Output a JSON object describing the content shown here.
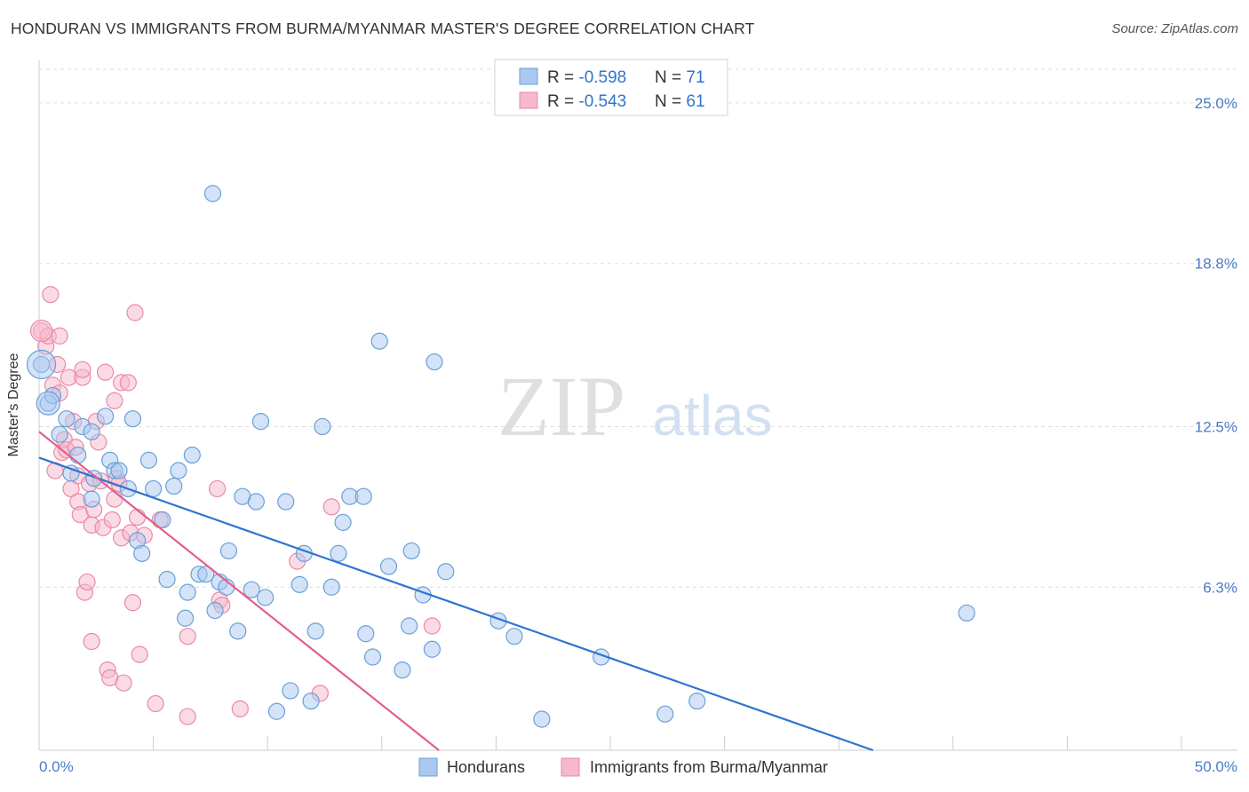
{
  "title": "HONDURAN VS IMMIGRANTS FROM BURMA/MYANMAR MASTER'S DEGREE CORRELATION CHART",
  "source": "Source: ZipAtlas.com",
  "watermark": {
    "zip": "ZIP",
    "atlas": "atlas"
  },
  "colors": {
    "blue_fill": "#aac8f0",
    "blue_stroke": "#6a9fd8",
    "blue_line": "#2f74d0",
    "pink_fill": "#f6b8cc",
    "pink_stroke": "#e88aa8",
    "pink_line": "#e0608c",
    "tick_label": "#4a7cc7",
    "grid": "#dddddd"
  },
  "chart_data": {
    "type": "scatter",
    "title": "HONDURAN VS IMMIGRANTS FROM BURMA/MYANMAR MASTER'S DEGREE CORRELATION CHART",
    "xlabel": "",
    "ylabel": "Master's Degree",
    "xlim": [
      0,
      50
    ],
    "ylim": [
      0,
      26.3
    ],
    "x_tick_labels": [
      {
        "value": 0,
        "label": "0.0%"
      },
      {
        "value": 50,
        "label": "50.0%"
      }
    ],
    "y_tick_labels": [
      {
        "value": 6.3,
        "label": "6.3%"
      },
      {
        "value": 12.5,
        "label": "12.5%"
      },
      {
        "value": 18.8,
        "label": "18.8%"
      },
      {
        "value": 25.0,
        "label": "25.0%"
      }
    ],
    "grid": "horizontal dashed",
    "legend_position": "top-center",
    "stats": [
      {
        "r_label": "R = ",
        "r_value": "-0.598",
        "n_label": "N = ",
        "n_value": "71"
      },
      {
        "r_label": "R = ",
        "r_value": "-0.543",
        "n_label": "N = ",
        "n_value": "61"
      }
    ],
    "series": [
      {
        "name": "Hondurans",
        "color": "#aac8f0",
        "trend": {
          "x": [
            0,
            36.5
          ],
          "y": [
            11.3,
            0
          ]
        },
        "points": [
          [
            0.1,
            14.9
          ],
          [
            0.4,
            13.4
          ],
          [
            0.6,
            13.7
          ],
          [
            0.9,
            12.2
          ],
          [
            1.2,
            12.8
          ],
          [
            1.4,
            10.7
          ],
          [
            1.7,
            11.4
          ],
          [
            1.9,
            12.5
          ],
          [
            2.3,
            9.7
          ],
          [
            2.4,
            10.5
          ],
          [
            2.3,
            12.3
          ],
          [
            2.9,
            12.9
          ],
          [
            3.1,
            11.2
          ],
          [
            3.3,
            10.8
          ],
          [
            3.5,
            10.8
          ],
          [
            3.9,
            10.1
          ],
          [
            4.1,
            12.8
          ],
          [
            4.3,
            8.1
          ],
          [
            4.5,
            7.6
          ],
          [
            4.8,
            11.2
          ],
          [
            5.0,
            10.1
          ],
          [
            5.4,
            8.9
          ],
          [
            5.6,
            6.6
          ],
          [
            5.9,
            10.2
          ],
          [
            6.1,
            10.8
          ],
          [
            6.4,
            5.1
          ],
          [
            6.5,
            6.1
          ],
          [
            6.7,
            11.4
          ],
          [
            7.0,
            6.8
          ],
          [
            7.3,
            6.8
          ],
          [
            7.6,
            21.5
          ],
          [
            7.7,
            5.4
          ],
          [
            7.9,
            6.5
          ],
          [
            8.2,
            6.3
          ],
          [
            8.3,
            7.7
          ],
          [
            8.7,
            4.6
          ],
          [
            8.9,
            9.8
          ],
          [
            9.3,
            6.2
          ],
          [
            9.5,
            9.6
          ],
          [
            9.7,
            12.7
          ],
          [
            9.9,
            5.9
          ],
          [
            10.4,
            1.5
          ],
          [
            10.8,
            9.6
          ],
          [
            11.0,
            2.3
          ],
          [
            11.4,
            6.4
          ],
          [
            11.6,
            7.6
          ],
          [
            11.9,
            1.9
          ],
          [
            12.1,
            4.6
          ],
          [
            12.4,
            12.5
          ],
          [
            12.8,
            6.3
          ],
          [
            13.1,
            7.6
          ],
          [
            13.3,
            8.8
          ],
          [
            13.6,
            9.8
          ],
          [
            14.2,
            9.8
          ],
          [
            14.3,
            4.5
          ],
          [
            14.6,
            3.6
          ],
          [
            14.9,
            15.8
          ],
          [
            15.3,
            7.1
          ],
          [
            15.9,
            3.1
          ],
          [
            16.2,
            4.8
          ],
          [
            16.3,
            7.7
          ],
          [
            16.8,
            6.0
          ],
          [
            17.3,
            15.0
          ],
          [
            17.8,
            6.9
          ],
          [
            17.2,
            3.9
          ],
          [
            20.1,
            5.0
          ],
          [
            20.8,
            4.4
          ],
          [
            22.0,
            1.2
          ],
          [
            24.6,
            3.6
          ],
          [
            27.4,
            1.4
          ],
          [
            28.8,
            1.9
          ],
          [
            40.6,
            5.3
          ]
        ]
      },
      {
        "name": "Immigrants from Burma/Myanmar",
        "color": "#f6b8cc",
        "trend": {
          "x": [
            0,
            17.5
          ],
          "y": [
            12.3,
            0
          ]
        },
        "points": [
          [
            0.1,
            16.2
          ],
          [
            0.3,
            15.6
          ],
          [
            0.4,
            16.0
          ],
          [
            0.5,
            17.6
          ],
          [
            0.6,
            14.1
          ],
          [
            0.7,
            10.8
          ],
          [
            0.8,
            14.9
          ],
          [
            0.9,
            13.8
          ],
          [
            0.9,
            16.0
          ],
          [
            1.0,
            11.5
          ],
          [
            1.1,
            12.0
          ],
          [
            1.2,
            11.6
          ],
          [
            1.3,
            14.4
          ],
          [
            1.4,
            10.1
          ],
          [
            1.5,
            12.7
          ],
          [
            1.6,
            11.7
          ],
          [
            1.7,
            9.6
          ],
          [
            1.7,
            10.6
          ],
          [
            1.8,
            9.1
          ],
          [
            1.9,
            14.4
          ],
          [
            1.9,
            14.7
          ],
          [
            2.0,
            6.1
          ],
          [
            2.1,
            6.5
          ],
          [
            2.2,
            10.3
          ],
          [
            2.3,
            8.7
          ],
          [
            2.3,
            4.2
          ],
          [
            2.4,
            9.3
          ],
          [
            2.5,
            12.7
          ],
          [
            2.6,
            11.9
          ],
          [
            2.7,
            10.4
          ],
          [
            2.8,
            8.6
          ],
          [
            2.9,
            14.6
          ],
          [
            3.0,
            3.1
          ],
          [
            3.1,
            2.8
          ],
          [
            3.2,
            8.9
          ],
          [
            3.3,
            13.5
          ],
          [
            3.4,
            10.5
          ],
          [
            3.5,
            10.3
          ],
          [
            3.6,
            14.2
          ],
          [
            3.6,
            8.2
          ],
          [
            3.7,
            2.6
          ],
          [
            3.9,
            14.2
          ],
          [
            4.0,
            8.4
          ],
          [
            4.1,
            5.7
          ],
          [
            4.2,
            16.9
          ],
          [
            4.3,
            9.0
          ],
          [
            4.4,
            3.7
          ],
          [
            4.6,
            8.3
          ],
          [
            5.3,
            8.9
          ],
          [
            5.1,
            1.8
          ],
          [
            6.5,
            4.4
          ],
          [
            6.5,
            1.3
          ],
          [
            7.9,
            5.8
          ],
          [
            7.8,
            10.1
          ],
          [
            8.8,
            1.6
          ],
          [
            11.3,
            7.3
          ],
          [
            12.3,
            2.2
          ],
          [
            12.8,
            9.4
          ],
          [
            17.2,
            4.8
          ],
          [
            8.0,
            5.6
          ],
          [
            3.3,
            9.7
          ]
        ]
      }
    ]
  }
}
